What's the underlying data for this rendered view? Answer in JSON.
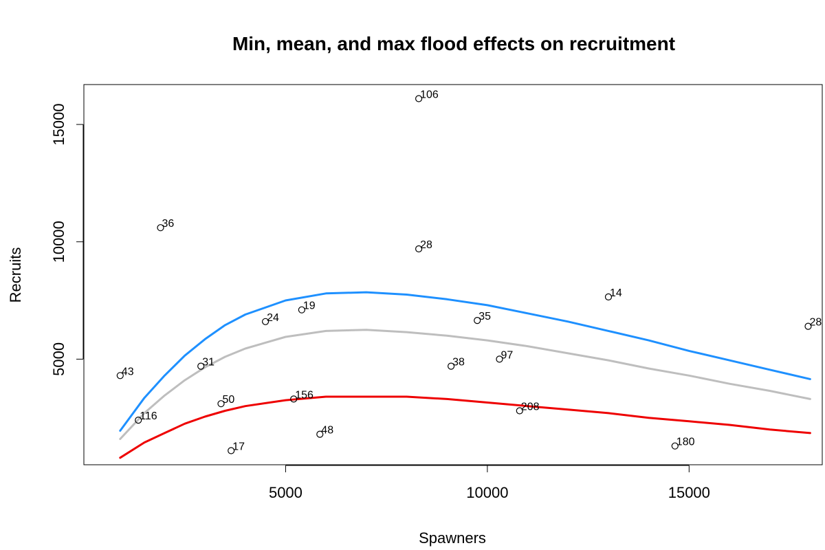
{
  "chart_data": {
    "type": "scatter",
    "title": "Min, mean, and max flood effects on recruitment",
    "xlabel": "Spawners",
    "ylabel": "Recruits",
    "xlim": [
      0,
      18300
    ],
    "ylim": [
      500,
      16700
    ],
    "xticks": [
      5000,
      10000,
      15000
    ],
    "yticks": [
      5000,
      10000,
      15000
    ],
    "grid": false,
    "points": [
      {
        "x": 900,
        "y": 4300,
        "label": "43"
      },
      {
        "x": 1350,
        "y": 2400,
        "label": "116"
      },
      {
        "x": 1900,
        "y": 10600,
        "label": "36"
      },
      {
        "x": 2900,
        "y": 4700,
        "label": "31"
      },
      {
        "x": 3400,
        "y": 3100,
        "label": "50"
      },
      {
        "x": 3650,
        "y": 1100,
        "label": "17"
      },
      {
        "x": 4500,
        "y": 6600,
        "label": "24"
      },
      {
        "x": 5200,
        "y": 3300,
        "label": "156"
      },
      {
        "x": 5400,
        "y": 7100,
        "label": "19"
      },
      {
        "x": 5850,
        "y": 1800,
        "label": "48"
      },
      {
        "x": 8300,
        "y": 16100,
        "label": "106"
      },
      {
        "x": 8300,
        "y": 9700,
        "label": "28"
      },
      {
        "x": 9100,
        "y": 4700,
        "label": "38"
      },
      {
        "x": 9750,
        "y": 6650,
        "label": "35"
      },
      {
        "x": 10300,
        "y": 5000,
        "label": "97"
      },
      {
        "x": 10800,
        "y": 2800,
        "label": "208"
      },
      {
        "x": 13000,
        "y": 7650,
        "label": "14"
      },
      {
        "x": 14650,
        "y": 1300,
        "label": "180"
      },
      {
        "x": 17950,
        "y": 6400,
        "label": "28"
      }
    ],
    "series": [
      {
        "color": "#1E90FF",
        "x": [
          900,
          1500,
          2000,
          2500,
          3000,
          3500,
          4000,
          5000,
          6000,
          7000,
          8000,
          9000,
          10000,
          11000,
          12000,
          13000,
          14000,
          15000,
          16000,
          17000,
          18000
        ],
        "y": [
          1950,
          3350,
          4300,
          5150,
          5850,
          6450,
          6900,
          7500,
          7800,
          7850,
          7750,
          7550,
          7300,
          6950,
          6600,
          6200,
          5800,
          5350,
          4950,
          4550,
          4150
        ]
      },
      {
        "color": "#BEBEBE",
        "x": [
          900,
          1500,
          2000,
          2500,
          3000,
          3500,
          4000,
          5000,
          6000,
          7000,
          8000,
          9000,
          10000,
          11000,
          12000,
          13000,
          14000,
          15000,
          16000,
          17000,
          18000
        ],
        "y": [
          1600,
          2700,
          3450,
          4100,
          4650,
          5100,
          5450,
          5950,
          6200,
          6250,
          6150,
          6000,
          5800,
          5550,
          5250,
          4950,
          4600,
          4300,
          3950,
          3650,
          3300
        ]
      },
      {
        "color": "#EE0000",
        "x": [
          900,
          1500,
          2000,
          2500,
          3000,
          3500,
          4000,
          5000,
          6000,
          7000,
          8000,
          9000,
          10000,
          11000,
          12000,
          13000,
          14000,
          15000,
          16000,
          17000,
          18000
        ],
        "y": [
          800,
          1450,
          1850,
          2250,
          2550,
          2800,
          3000,
          3250,
          3400,
          3400,
          3400,
          3300,
          3150,
          3000,
          2850,
          2700,
          2500,
          2350,
          2200,
          2000,
          1850
        ]
      }
    ]
  }
}
